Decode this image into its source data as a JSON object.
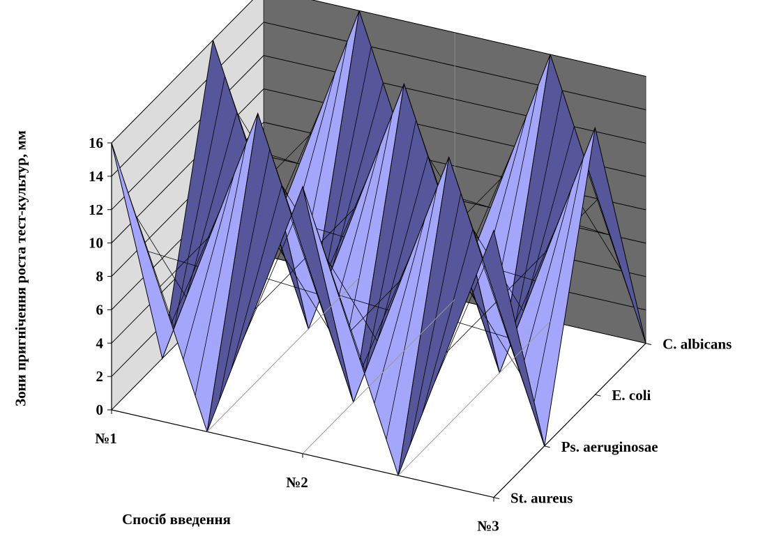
{
  "chart_data": {
    "type": "surface",
    "title": "",
    "ylabel": "Зони пригнічення роста тест-культур, мм",
    "xlabel": "Спосіб введення",
    "zlim": [
      0,
      16
    ],
    "z_ticks": [
      0,
      2,
      4,
      6,
      8,
      10,
      12,
      14,
      16
    ],
    "categories": [
      "№1",
      "",
      "№2",
      "",
      "№3"
    ],
    "series": [
      {
        "name": "St. aureus",
        "values": [
          16,
          0,
          16,
          0,
          16
        ]
      },
      {
        "name": "Ps. aeruginosae",
        "values": [
          0,
          16,
          0,
          16,
          0
        ]
      },
      {
        "name": "E. coli",
        "values": [
          16,
          0,
          16,
          0,
          16
        ]
      },
      {
        "name": "C. albicans",
        "values": [
          0,
          16,
          0,
          16,
          0
        ]
      }
    ],
    "grid": true,
    "legend": "none"
  },
  "colors": {
    "surface_light": "#a4a6fc",
    "surface_dark": "#56569a",
    "back_wall": "#6b6b6b",
    "side_wall": "#dcdcdc"
  }
}
